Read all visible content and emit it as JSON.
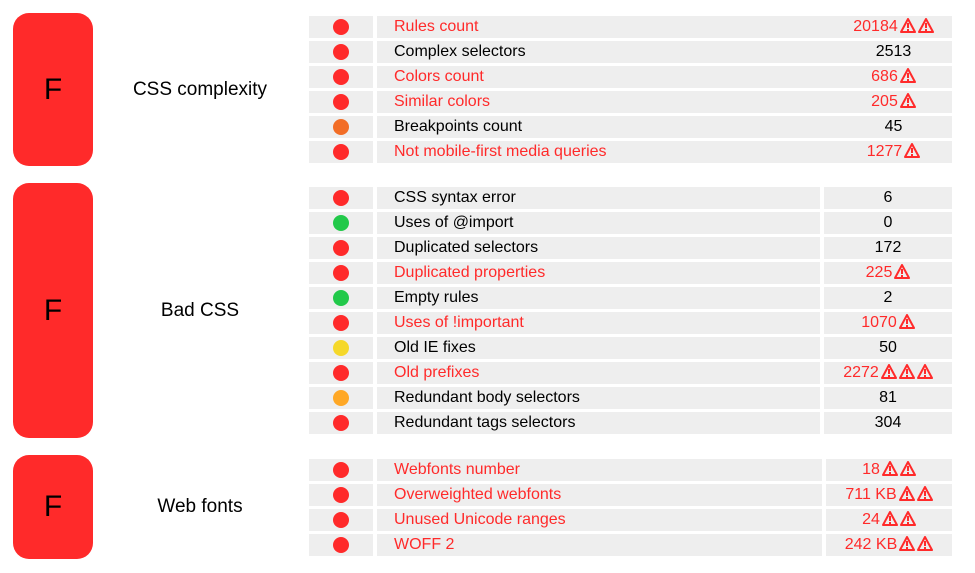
{
  "colors": {
    "grade_bg": "#ff2a2a",
    "bad_text": "#ff2a2a",
    "dot_red": "#ff2a2a",
    "dot_orange": "#f26d26",
    "dot_amber": "#ffa826",
    "dot_yellow": "#f5d82a",
    "dot_green": "#22c94a",
    "row_bg": "#eeeeee"
  },
  "sections": [
    {
      "grade": "F",
      "category": "CSS complexity",
      "rows": [
        {
          "status": "red",
          "label": "Rules count",
          "value": "20184",
          "warnings": 2,
          "bad": true
        },
        {
          "status": "red",
          "label": "Complex selectors",
          "value": "2513",
          "warnings": 0,
          "bad": false
        },
        {
          "status": "red",
          "label": "Colors count",
          "value": "686",
          "warnings": 1,
          "bad": true
        },
        {
          "status": "red",
          "label": "Similar colors",
          "value": "205",
          "warnings": 1,
          "bad": true
        },
        {
          "status": "orange",
          "label": "Breakpoints count",
          "value": "45",
          "warnings": 0,
          "bad": false
        },
        {
          "status": "red",
          "label": "Not mobile-first media queries",
          "value": "1277",
          "warnings": 1,
          "bad": true
        }
      ]
    },
    {
      "grade": "F",
      "category": "Bad CSS",
      "rows": [
        {
          "status": "red",
          "label": "CSS syntax error",
          "value": "6",
          "warnings": 0,
          "bad": false
        },
        {
          "status": "green",
          "label": "Uses of @import",
          "value": "0",
          "warnings": 0,
          "bad": false
        },
        {
          "status": "red",
          "label": "Duplicated selectors",
          "value": "172",
          "warnings": 0,
          "bad": false
        },
        {
          "status": "red",
          "label": "Duplicated properties",
          "value": "225",
          "warnings": 1,
          "bad": true
        },
        {
          "status": "green",
          "label": "Empty rules",
          "value": "2",
          "warnings": 0,
          "bad": false
        },
        {
          "status": "red",
          "label": "Uses of !important",
          "value": "1070",
          "warnings": 1,
          "bad": true
        },
        {
          "status": "yellow",
          "label": "Old IE fixes",
          "value": "50",
          "warnings": 0,
          "bad": false
        },
        {
          "status": "red",
          "label": "Old prefixes",
          "value": "2272",
          "warnings": 3,
          "bad": true
        },
        {
          "status": "amber",
          "label": "Redundant body selectors",
          "value": "81",
          "warnings": 0,
          "bad": false
        },
        {
          "status": "red",
          "label": "Redundant tags selectors",
          "value": "304",
          "warnings": 0,
          "bad": false
        }
      ]
    },
    {
      "grade": "F",
      "category": "Web fonts",
      "rows": [
        {
          "status": "red",
          "label": "Webfonts number",
          "value": "18",
          "warnings": 2,
          "bad": true
        },
        {
          "status": "red",
          "label": "Overweighted webfonts",
          "value": "711 KB",
          "warnings": 2,
          "bad": true
        },
        {
          "status": "red",
          "label": "Unused Unicode ranges",
          "value": "24",
          "warnings": 2,
          "bad": true
        },
        {
          "status": "red",
          "label": "WOFF 2",
          "value": "242 KB",
          "warnings": 2,
          "bad": true
        }
      ]
    }
  ]
}
